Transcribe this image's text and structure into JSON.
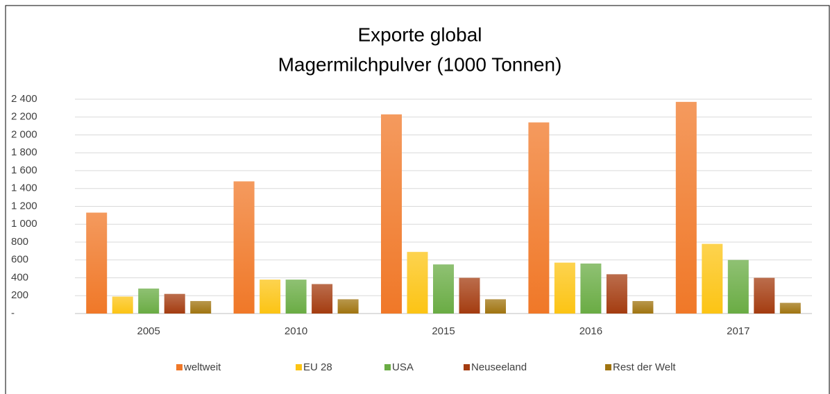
{
  "chart_data": {
    "type": "bar",
    "title": [
      "Exporte global",
      "Magermilchpulver (1000 Tonnen)"
    ],
    "categories": [
      "2005",
      "2010",
      "2015",
      "2016",
      "2017"
    ],
    "series": [
      {
        "name": "weltweit",
        "color": "#f07828",
        "values": [
          1130,
          1480,
          2230,
          2140,
          2370
        ]
      },
      {
        "name": "EU 28",
        "color": "#fcc414",
        "values": [
          190,
          380,
          690,
          570,
          780
        ]
      },
      {
        "name": "USA",
        "color": "#6aac44",
        "values": [
          280,
          380,
          550,
          560,
          600
        ]
      },
      {
        "name": "Neuseeland",
        "color": "#a43c10",
        "values": [
          220,
          330,
          400,
          440,
          400
        ]
      },
      {
        "name": "Rest der Welt",
        "color": "#a07410",
        "values": [
          140,
          160,
          160,
          140,
          120
        ]
      }
    ],
    "ylim": [
      0,
      2400
    ],
    "yticks": [
      {
        "value": 0,
        "label": "-"
      },
      200,
      400,
      600,
      800,
      {
        "value": 1000,
        "label": "1 000"
      },
      {
        "value": 1200,
        "label": "1 200"
      },
      {
        "value": 1400,
        "label": "1 400"
      },
      {
        "value": 1600,
        "label": "1 600"
      },
      {
        "value": 1800,
        "label": "1 800"
      },
      {
        "value": 2000,
        "label": "2 000"
      },
      {
        "value": 2200,
        "label": "2 200"
      },
      {
        "value": 2400,
        "label": "2 400"
      }
    ],
    "grid": true,
    "legend": "bottom"
  }
}
